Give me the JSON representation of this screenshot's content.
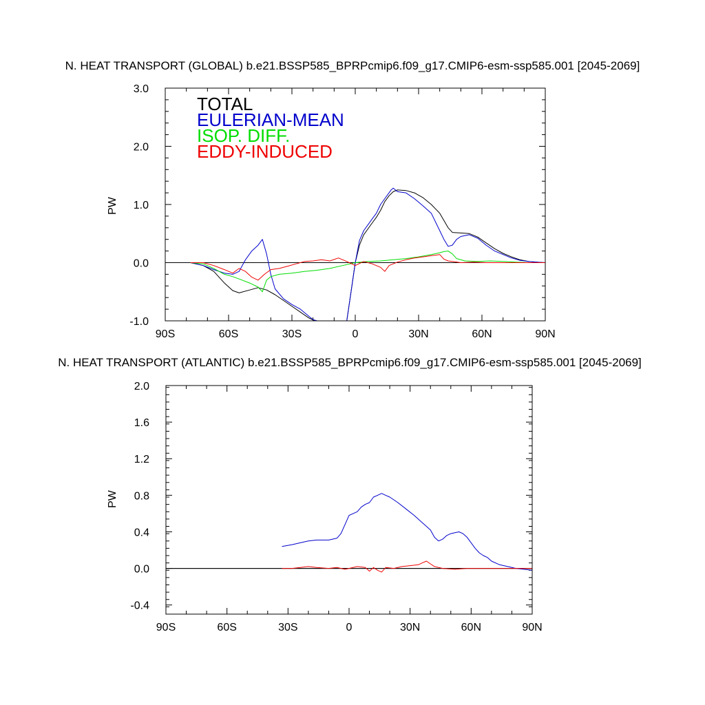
{
  "chart_data": [
    {
      "type": "line",
      "title": "N. HEAT TRANSPORT (GLOBAL) b.e21.BSSP585_BPRPcmip6.f09_g17.CMIP6-esm-ssp585.001 [2045-2069]",
      "ylabel": "PW",
      "xlim": [
        -90,
        90
      ],
      "ylim": [
        -1.0,
        3.0
      ],
      "x_tick_values": [
        -90,
        -60,
        -30,
        0,
        30,
        60,
        90
      ],
      "x_tick_labels": [
        "90S",
        "60S",
        "30S",
        "0",
        "30N",
        "60N",
        "90N"
      ],
      "y_tick_values": [
        -1.0,
        0.0,
        1.0,
        2.0,
        3.0
      ],
      "y_tick_labels": [
        "-1.0",
        "0.0",
        "1.0",
        "2.0",
        "3.0"
      ],
      "legend_placement": "top-left",
      "series": [
        {
          "name": "TOTAL",
          "color": "#000000",
          "x": [
            -78,
            -72,
            -67,
            -62,
            -58,
            -55,
            -50,
            -46,
            -42,
            -38,
            -34,
            -30,
            -26,
            -22,
            -19,
            -15,
            -10,
            -6,
            -4,
            -2,
            0,
            2,
            4,
            6,
            8,
            10,
            12,
            14,
            16,
            18,
            20,
            24,
            28,
            32,
            36,
            40,
            44,
            46,
            50,
            54,
            58,
            62,
            66,
            70,
            74,
            78,
            82,
            86,
            90
          ],
          "y": [
            0.0,
            -0.05,
            -0.15,
            -0.35,
            -0.48,
            -0.52,
            -0.47,
            -0.43,
            -0.47,
            -0.55,
            -0.65,
            -0.75,
            -0.85,
            -0.95,
            -1.0,
            -1.0,
            -1.0,
            -1.0,
            -1.0,
            -0.5,
            0.0,
            0.3,
            0.48,
            0.58,
            0.68,
            0.78,
            0.9,
            1.05,
            1.15,
            1.22,
            1.25,
            1.24,
            1.2,
            1.12,
            1.0,
            0.85,
            0.6,
            0.52,
            0.51,
            0.5,
            0.44,
            0.34,
            0.24,
            0.16,
            0.1,
            0.05,
            0.02,
            0.01,
            0.0
          ]
        },
        {
          "name": "EULERIAN-MEAN",
          "color": "#0000cc",
          "x": [
            -78,
            -72,
            -67,
            -62,
            -58,
            -55,
            -52,
            -49,
            -46,
            -44,
            -42,
            -40,
            -38,
            -34,
            -30,
            -26,
            -22,
            -20,
            -18,
            -10,
            -6,
            -4,
            -2,
            0,
            2,
            4,
            6,
            8,
            10,
            12,
            14,
            16,
            17,
            18,
            20,
            24,
            28,
            32,
            36,
            40,
            42,
            44,
            46,
            48,
            50,
            54,
            58,
            62,
            66,
            70,
            74,
            78,
            82,
            86,
            90
          ],
          "y": [
            0.0,
            -0.05,
            -0.12,
            -0.18,
            -0.2,
            -0.15,
            0.05,
            0.2,
            0.3,
            0.4,
            0.15,
            -0.2,
            -0.45,
            -0.62,
            -0.72,
            -0.8,
            -0.92,
            -0.98,
            -1.0,
            -1.0,
            -1.0,
            -1.0,
            -0.5,
            0.0,
            0.38,
            0.55,
            0.65,
            0.75,
            0.85,
            1.0,
            1.1,
            1.2,
            1.25,
            1.28,
            1.22,
            1.2,
            1.1,
            0.98,
            0.85,
            0.55,
            0.4,
            0.28,
            0.3,
            0.4,
            0.45,
            0.48,
            0.42,
            0.3,
            0.2,
            0.14,
            0.08,
            0.04,
            0.02,
            0.01,
            0.0
          ]
        },
        {
          "name": "ISOP. DIFF.",
          "color": "#00dd00",
          "x": [
            -78,
            -72,
            -67,
            -62,
            -58,
            -55,
            -50,
            -46,
            -44,
            -42,
            -40,
            -36,
            -30,
            -24,
            -18,
            -12,
            -6,
            0,
            6,
            12,
            18,
            24,
            30,
            36,
            40,
            42,
            44,
            46,
            48,
            52,
            58,
            64,
            70,
            76,
            82,
            90
          ],
          "y": [
            0.0,
            -0.02,
            -0.1,
            -0.2,
            -0.24,
            -0.28,
            -0.35,
            -0.42,
            -0.5,
            -0.3,
            -0.24,
            -0.2,
            -0.18,
            -0.15,
            -0.13,
            -0.1,
            -0.05,
            0.0,
            0.02,
            0.03,
            0.05,
            0.07,
            0.1,
            0.14,
            0.17,
            0.19,
            0.2,
            0.15,
            0.07,
            0.03,
            0.02,
            0.03,
            0.02,
            0.01,
            0.0,
            0.0
          ]
        },
        {
          "name": "EDDY-INDUCED",
          "color": "#ee0000",
          "x": [
            -78,
            -72,
            -67,
            -62,
            -58,
            -55,
            -52,
            -49,
            -46,
            -43,
            -40,
            -36,
            -32,
            -28,
            -24,
            -20,
            -16,
            -12,
            -8,
            -4,
            0,
            4,
            8,
            12,
            14,
            16,
            20,
            24,
            28,
            32,
            36,
            40,
            42,
            44,
            46,
            50,
            56,
            62,
            70,
            80,
            90
          ],
          "y": [
            0.0,
            0.0,
            -0.05,
            -0.12,
            -0.18,
            -0.1,
            -0.15,
            -0.25,
            -0.3,
            -0.2,
            -0.12,
            -0.1,
            -0.06,
            -0.02,
            0.02,
            0.03,
            0.05,
            0.03,
            0.08,
            0.02,
            -0.05,
            0.02,
            -0.02,
            -0.08,
            -0.15,
            -0.05,
            0.01,
            0.05,
            0.08,
            0.1,
            0.12,
            0.14,
            0.06,
            0.03,
            0.02,
            0.0,
            0.01,
            0.0,
            0.0,
            0.0,
            0.0
          ]
        }
      ]
    },
    {
      "type": "line",
      "title": "N. HEAT TRANSPORT (ATLANTIC) b.e21.BSSP585_BPRPcmip6.f09_g17.CMIP6-esm-ssp585.001 [2045-2069]",
      "ylabel": "PW",
      "xlim": [
        -90,
        90
      ],
      "ylim": [
        -0.5,
        2.0
      ],
      "x_tick_values": [
        -90,
        -60,
        -30,
        0,
        30,
        60,
        90
      ],
      "x_tick_labels": [
        "90S",
        "60S",
        "30S",
        "0",
        "30N",
        "60N",
        "90N"
      ],
      "y_tick_values": [
        -0.4,
        0.0,
        0.4,
        0.8,
        1.2,
        1.6,
        2.0
      ],
      "y_tick_labels": [
        "-0.4",
        "0.0",
        "0.4",
        "0.8",
        "1.2",
        "1.6",
        "2.0"
      ],
      "series": [
        {
          "name": "TOTAL",
          "color": "#000000",
          "x": [
            -90,
            90
          ],
          "y": [
            0.0,
            0.0
          ]
        },
        {
          "name": "EULERIAN-MEAN",
          "color": "#0000cc",
          "x": [
            -33,
            -28,
            -24,
            -20,
            -16,
            -10,
            -6,
            -4,
            -2,
            0,
            2,
            4,
            6,
            8,
            10,
            12,
            14,
            16,
            18,
            20,
            24,
            28,
            32,
            36,
            40,
            42,
            44,
            46,
            48,
            50,
            52,
            54,
            56,
            58,
            60,
            62,
            64,
            66,
            68,
            70,
            74,
            78,
            82,
            86,
            90
          ],
          "y": [
            0.24,
            0.26,
            0.28,
            0.3,
            0.31,
            0.31,
            0.33,
            0.38,
            0.48,
            0.58,
            0.6,
            0.62,
            0.67,
            0.7,
            0.72,
            0.78,
            0.8,
            0.82,
            0.8,
            0.78,
            0.72,
            0.65,
            0.58,
            0.5,
            0.42,
            0.34,
            0.3,
            0.32,
            0.36,
            0.38,
            0.39,
            0.4,
            0.38,
            0.34,
            0.28,
            0.22,
            0.17,
            0.14,
            0.12,
            0.08,
            0.04,
            0.02,
            0.0,
            -0.01,
            -0.02
          ]
        },
        {
          "name": "EDDY-INDUCED",
          "color": "#ee0000",
          "x": [
            -33,
            -28,
            -24,
            -20,
            -16,
            -10,
            -6,
            -2,
            0,
            4,
            8,
            10,
            12,
            14,
            16,
            18,
            22,
            26,
            30,
            34,
            36,
            38,
            40,
            42,
            46,
            52,
            58,
            64,
            70,
            80,
            90
          ],
          "y": [
            0.0,
            0.0,
            0.01,
            0.02,
            0.01,
            0.0,
            0.01,
            -0.01,
            0.0,
            0.02,
            0.01,
            -0.03,
            0.01,
            -0.02,
            -0.04,
            0.01,
            0.0,
            0.02,
            0.03,
            0.04,
            0.06,
            0.08,
            0.05,
            0.02,
            0.0,
            -0.01,
            0.0,
            0.0,
            0.0,
            0.0,
            0.0
          ]
        }
      ]
    }
  ]
}
